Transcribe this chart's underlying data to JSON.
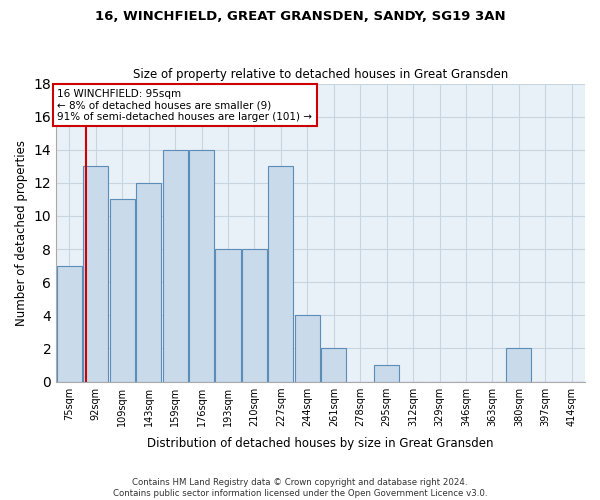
{
  "title1": "16, WINCHFIELD, GREAT GRANSDEN, SANDY, SG19 3AN",
  "title2": "Size of property relative to detached houses in Great Gransden",
  "xlabel": "Distribution of detached houses by size in Great Gransden",
  "ylabel": "Number of detached properties",
  "bin_labels": [
    "75sqm",
    "92sqm",
    "109sqm",
    "143sqm",
    "159sqm",
    "176sqm",
    "193sqm",
    "210sqm",
    "227sqm",
    "244sqm",
    "261sqm",
    "278sqm",
    "295sqm",
    "312sqm",
    "329sqm",
    "346sqm",
    "363sqm",
    "380sqm",
    "397sqm",
    "414sqm"
  ],
  "bar_values": [
    7,
    13,
    11,
    12,
    14,
    14,
    8,
    8,
    13,
    4,
    2,
    0,
    1,
    0,
    0,
    0,
    0,
    2,
    0,
    0
  ],
  "bar_color": "#c9daea",
  "bar_edge_color": "#5b8db8",
  "grid_color": "#c8d4de",
  "bg_color": "#e8f0f8",
  "annotation_line1": "16 WINCHFIELD: 95sqm",
  "annotation_line2": "← 8% of detached houses are smaller (9)",
  "annotation_line3": "91% of semi-detached houses are larger (101) →",
  "annotation_box_color": "#ffffff",
  "annotation_box_edge": "#cc0000",
  "vline_color": "#cc0000",
  "vline_x_bar_index": 1,
  "ylim": [
    0,
    18
  ],
  "yticks": [
    0,
    2,
    4,
    6,
    8,
    10,
    12,
    14,
    16,
    18
  ],
  "footnote1": "Contains HM Land Registry data © Crown copyright and database right 2024.",
  "footnote2": "Contains public sector information licensed under the Open Government Licence v3.0.",
  "n_bars": 20
}
